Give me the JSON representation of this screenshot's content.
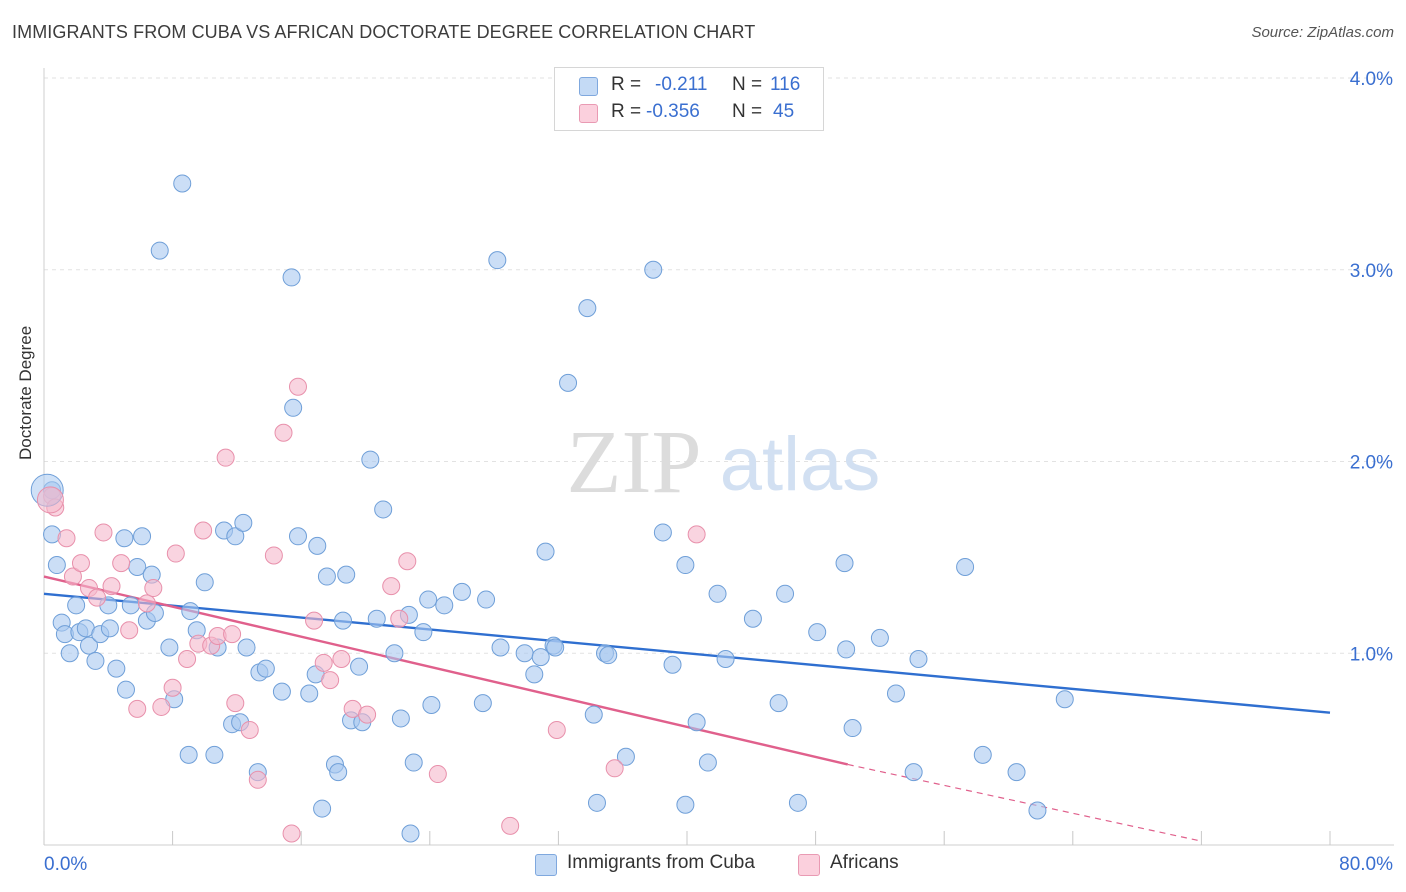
{
  "header": {
    "title": "IMMIGRANTS FROM CUBA VS AFRICAN DOCTORATE DEGREE CORRELATION CHART",
    "source": "Source: ZipAtlas.com"
  },
  "watermark": {
    "zip": "ZIP",
    "atlas": "atlas"
  },
  "stats_legend": {
    "rows": [
      {
        "r_label": "R =",
        "r_value": "-0.211",
        "n_label": "N =",
        "n_value": "116",
        "color": "#a8c8f0"
      },
      {
        "r_label": "R =",
        "r_value": "-0.356",
        "n_label": "N =",
        "n_value": "45",
        "color": "#f5b8cb"
      }
    ]
  },
  "bottom_legend": [
    {
      "label": "Immigrants from Cuba",
      "color": "#a8c8f0"
    },
    {
      "label": "Africans",
      "color": "#f5b8cb"
    }
  ],
  "chart_data": {
    "type": "scatter",
    "ylabel": "Doctorate Degree",
    "xlim": [
      0,
      80
    ],
    "ylim": [
      0,
      4.0
    ],
    "x_tick_labels": [
      "0.0%",
      "80.0%"
    ],
    "y_ticks": [
      1.0,
      2.0,
      3.0,
      4.0
    ],
    "y_tick_labels": [
      "1.0%",
      "2.0%",
      "3.0%",
      "4.0%"
    ],
    "grid": true,
    "series": [
      {
        "name": "Immigrants from Cuba",
        "color": "#a8c8f0",
        "stroke": "#6f9fd8",
        "line_color": "#2f6fd0",
        "trend": {
          "x": [
            0,
            80
          ],
          "y": [
            1.31,
            0.69
          ]
        },
        "points": [
          [
            0.5,
            1.85
          ],
          [
            0.5,
            1.62
          ],
          [
            0.8,
            1.46
          ],
          [
            1.1,
            1.16
          ],
          [
            1.3,
            1.1
          ],
          [
            1.6,
            1.0
          ],
          [
            2.0,
            1.25
          ],
          [
            2.2,
            1.11
          ],
          [
            2.6,
            1.13
          ],
          [
            2.8,
            1.04
          ],
          [
            3.2,
            0.96
          ],
          [
            3.5,
            1.1
          ],
          [
            4.0,
            1.25
          ],
          [
            4.1,
            1.13
          ],
          [
            4.5,
            0.92
          ],
          [
            5.0,
            1.6
          ],
          [
            5.1,
            0.81
          ],
          [
            5.4,
            1.25
          ],
          [
            5.8,
            1.45
          ],
          [
            6.1,
            1.61
          ],
          [
            6.4,
            1.17
          ],
          [
            6.7,
            1.41
          ],
          [
            6.9,
            1.21
          ],
          [
            7.2,
            3.1
          ],
          [
            7.8,
            1.03
          ],
          [
            8.1,
            0.76
          ],
          [
            8.6,
            3.45
          ],
          [
            9.0,
            0.47
          ],
          [
            9.1,
            1.22
          ],
          [
            9.5,
            1.12
          ],
          [
            10.0,
            1.37
          ],
          [
            10.6,
            0.47
          ],
          [
            10.8,
            1.03
          ],
          [
            11.2,
            1.64
          ],
          [
            11.7,
            0.63
          ],
          [
            11.9,
            1.61
          ],
          [
            12.2,
            0.64
          ],
          [
            12.4,
            1.68
          ],
          [
            12.6,
            1.03
          ],
          [
            13.3,
            0.38
          ],
          [
            13.4,
            0.9
          ],
          [
            13.8,
            0.92
          ],
          [
            14.8,
            0.8
          ],
          [
            15.4,
            2.96
          ],
          [
            15.5,
            2.28
          ],
          [
            15.8,
            1.61
          ],
          [
            16.5,
            0.79
          ],
          [
            16.9,
            0.89
          ],
          [
            17.0,
            1.56
          ],
          [
            17.3,
            0.19
          ],
          [
            17.6,
            1.4
          ],
          [
            18.1,
            0.42
          ],
          [
            18.3,
            0.38
          ],
          [
            18.6,
            1.17
          ],
          [
            18.8,
            1.41
          ],
          [
            19.1,
            0.65
          ],
          [
            19.6,
            0.93
          ],
          [
            19.8,
            0.64
          ],
          [
            20.3,
            2.01
          ],
          [
            20.7,
            1.18
          ],
          [
            21.1,
            1.75
          ],
          [
            21.8,
            1.0
          ],
          [
            22.2,
            0.66
          ],
          [
            22.7,
            1.2
          ],
          [
            22.8,
            0.06
          ],
          [
            23.0,
            0.43
          ],
          [
            23.6,
            1.11
          ],
          [
            23.9,
            1.28
          ],
          [
            24.1,
            0.73
          ],
          [
            24.9,
            1.25
          ],
          [
            26.0,
            1.32
          ],
          [
            27.3,
            0.74
          ],
          [
            27.5,
            1.28
          ],
          [
            28.2,
            3.05
          ],
          [
            28.4,
            1.03
          ],
          [
            29.9,
            1.0
          ],
          [
            30.5,
            0.89
          ],
          [
            30.9,
            0.98
          ],
          [
            31.2,
            1.53
          ],
          [
            31.7,
            1.04
          ],
          [
            31.8,
            1.03
          ],
          [
            32.6,
            2.41
          ],
          [
            33.8,
            2.8
          ],
          [
            34.2,
            0.68
          ],
          [
            34.4,
            0.22
          ],
          [
            34.9,
            1.0
          ],
          [
            35.1,
            0.99
          ],
          [
            36.2,
            0.46
          ],
          [
            37.9,
            3.0
          ],
          [
            38.5,
            1.63
          ],
          [
            39.1,
            0.94
          ],
          [
            39.9,
            0.21
          ],
          [
            39.9,
            1.46
          ],
          [
            40.6,
            0.64
          ],
          [
            41.3,
            0.43
          ],
          [
            41.9,
            1.31
          ],
          [
            42.4,
            0.97
          ],
          [
            44.1,
            1.18
          ],
          [
            45.7,
            0.74
          ],
          [
            46.1,
            1.31
          ],
          [
            46.9,
            0.22
          ],
          [
            48.1,
            1.11
          ],
          [
            49.8,
            1.47
          ],
          [
            49.9,
            1.02
          ],
          [
            50.3,
            0.61
          ],
          [
            52.0,
            1.08
          ],
          [
            53.0,
            0.79
          ],
          [
            54.1,
            0.38
          ],
          [
            54.4,
            0.97
          ],
          [
            57.3,
            1.45
          ],
          [
            58.4,
            0.47
          ],
          [
            60.5,
            0.38
          ],
          [
            61.8,
            0.18
          ],
          [
            63.5,
            0.76
          ]
        ]
      },
      {
        "name": "Africans",
        "color": "#f5b8cb",
        "stroke": "#e890ab",
        "line_color": "#e0608c",
        "trend": {
          "x": [
            0,
            50
          ],
          "y": [
            1.4,
            0.42
          ]
        },
        "trend_dashed": {
          "x": [
            50,
            72
          ],
          "y": [
            0.42,
            0.02
          ]
        },
        "points": [
          [
            0.5,
            1.82
          ],
          [
            0.7,
            1.76
          ],
          [
            1.4,
            1.6
          ],
          [
            1.8,
            1.4
          ],
          [
            2.3,
            1.47
          ],
          [
            2.8,
            1.34
          ],
          [
            3.3,
            1.29
          ],
          [
            3.7,
            1.63
          ],
          [
            4.2,
            1.35
          ],
          [
            4.8,
            1.47
          ],
          [
            5.3,
            1.12
          ],
          [
            5.8,
            0.71
          ],
          [
            6.4,
            1.26
          ],
          [
            6.8,
            1.34
          ],
          [
            7.3,
            0.72
          ],
          [
            8.0,
            0.82
          ],
          [
            8.2,
            1.52
          ],
          [
            8.9,
            0.97
          ],
          [
            9.6,
            1.05
          ],
          [
            9.9,
            1.64
          ],
          [
            10.4,
            1.04
          ],
          [
            10.8,
            1.09
          ],
          [
            11.3,
            2.02
          ],
          [
            11.7,
            1.1
          ],
          [
            11.9,
            0.74
          ],
          [
            12.8,
            0.6
          ],
          [
            13.3,
            0.34
          ],
          [
            14.3,
            1.51
          ],
          [
            14.9,
            2.15
          ],
          [
            15.4,
            0.06
          ],
          [
            15.8,
            2.39
          ],
          [
            16.8,
            1.17
          ],
          [
            17.4,
            0.95
          ],
          [
            17.8,
            0.86
          ],
          [
            18.5,
            0.97
          ],
          [
            19.2,
            0.71
          ],
          [
            20.1,
            0.68
          ],
          [
            21.6,
            1.35
          ],
          [
            22.1,
            1.18
          ],
          [
            22.6,
            1.48
          ],
          [
            24.5,
            0.37
          ],
          [
            29.0,
            0.1
          ],
          [
            31.9,
            0.6
          ],
          [
            35.5,
            0.4
          ],
          [
            40.6,
            1.62
          ]
        ]
      }
    ]
  }
}
